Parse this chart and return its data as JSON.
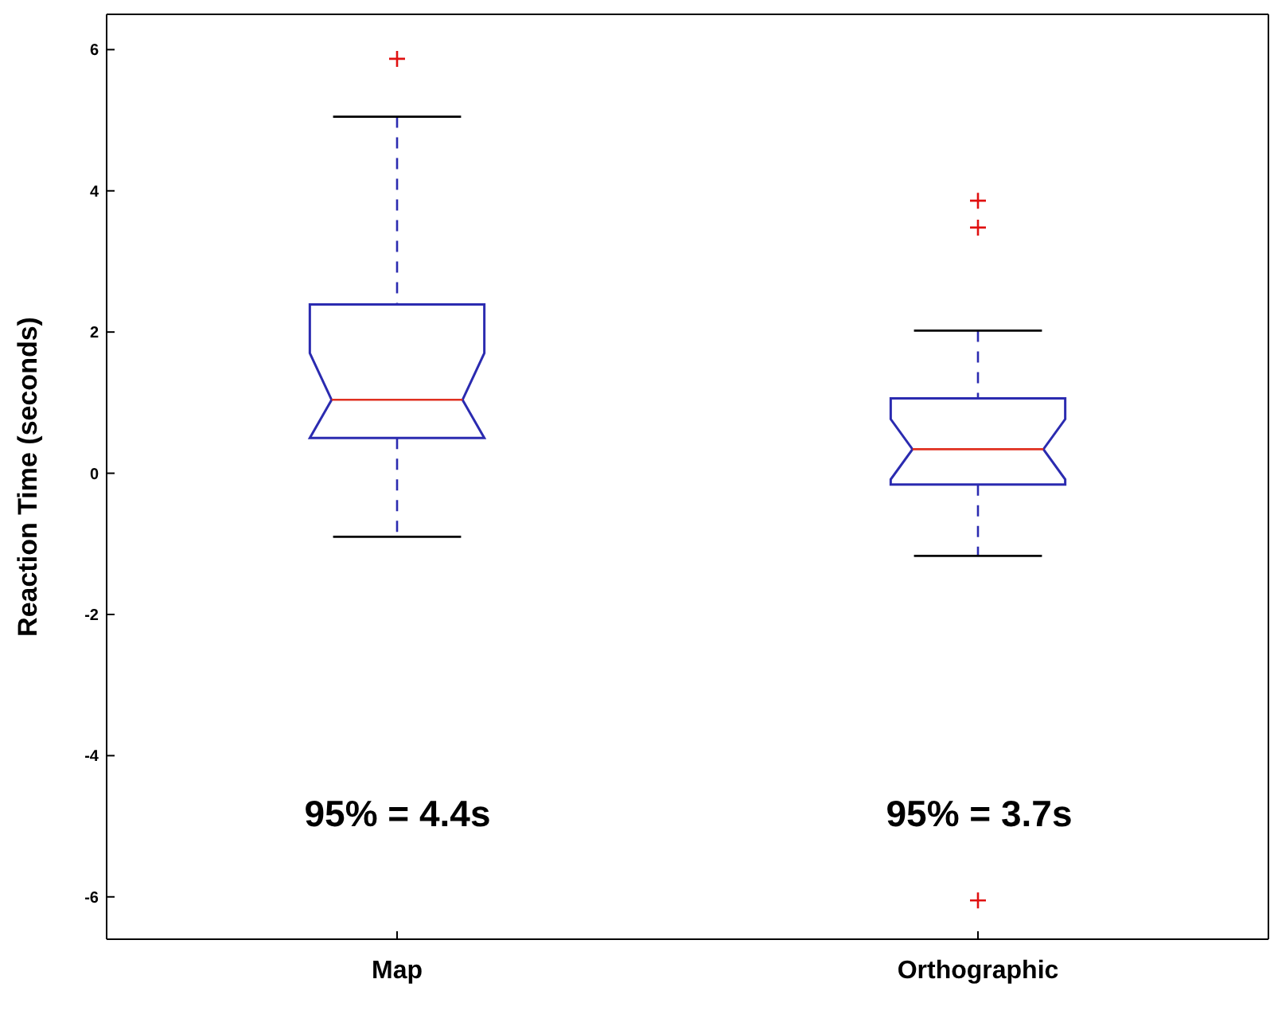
{
  "chart_data": {
    "type": "box",
    "ylabel": "Reaction Time (seconds)",
    "categories": [
      "Map",
      "Orthographic"
    ],
    "color": "#2b2bb0",
    "boxes": [
      {
        "low": -0.9,
        "q1": 0.5,
        "median": 1.04,
        "q3": 2.39,
        "high": 5.05,
        "outliers": [
          5.87
        ]
      },
      {
        "low": -1.17,
        "q1": -0.16,
        "median": 0.34,
        "q3": 1.06,
        "high": 2.02,
        "outliers": [
          3.86,
          3.48,
          -6.05
        ]
      }
    ],
    "ylim": [
      -6.6,
      6.5
    ],
    "yticks": [
      -6,
      -4,
      -2,
      0,
      2,
      4,
      6
    ],
    "marker": "cross",
    "annotations": [
      "95% = 4.4s",
      "95% = 3.7s"
    ]
  }
}
